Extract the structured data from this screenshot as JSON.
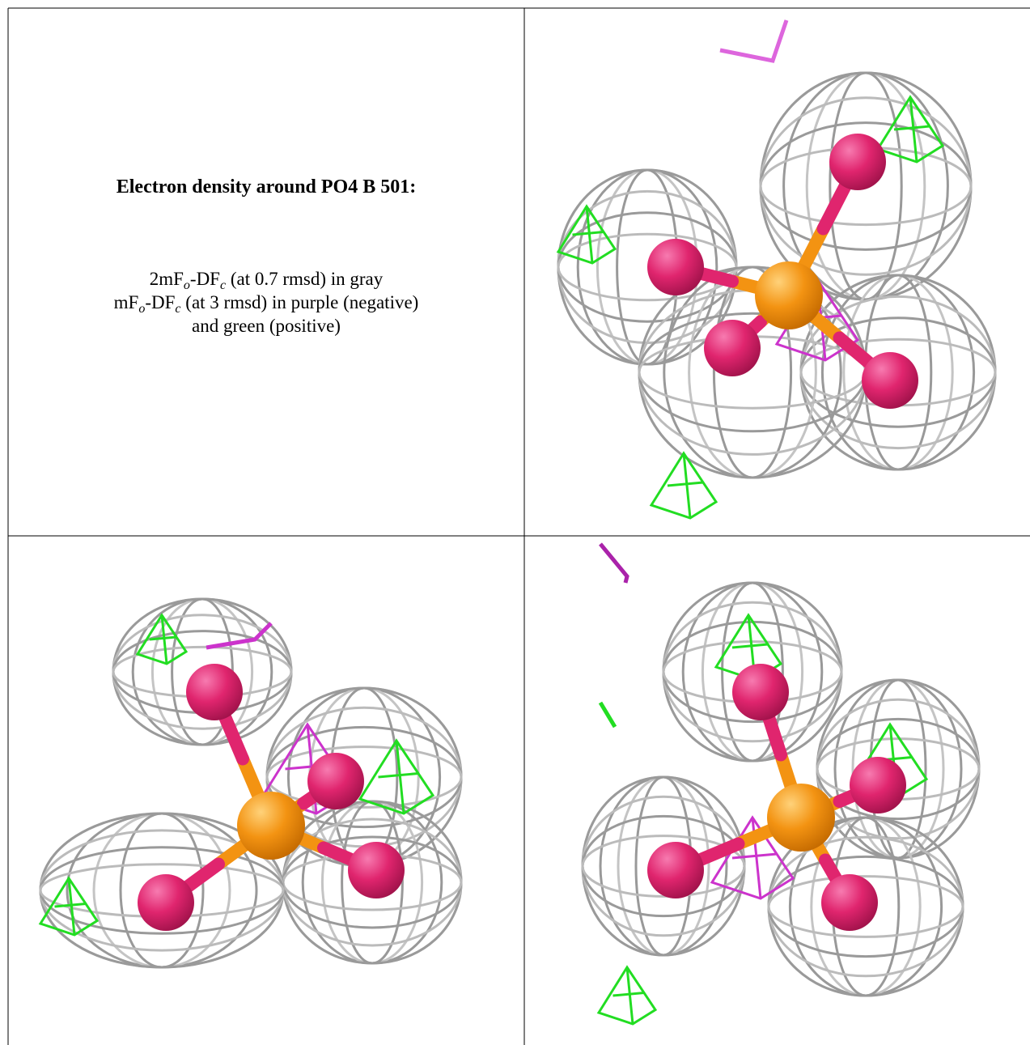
{
  "caption": {
    "title": "Electron density around PO4 B 501:",
    "lines": [
      [
        "2mF",
        "o",
        "-DF",
        "c",
        " (at 0.7 rmsd) in gray"
      ],
      [
        "mF",
        "o",
        "-DF",
        "c",
        " (at 3 rmsd) in purple (negative)"
      ],
      [
        "and green (positive)"
      ]
    ]
  }
}
